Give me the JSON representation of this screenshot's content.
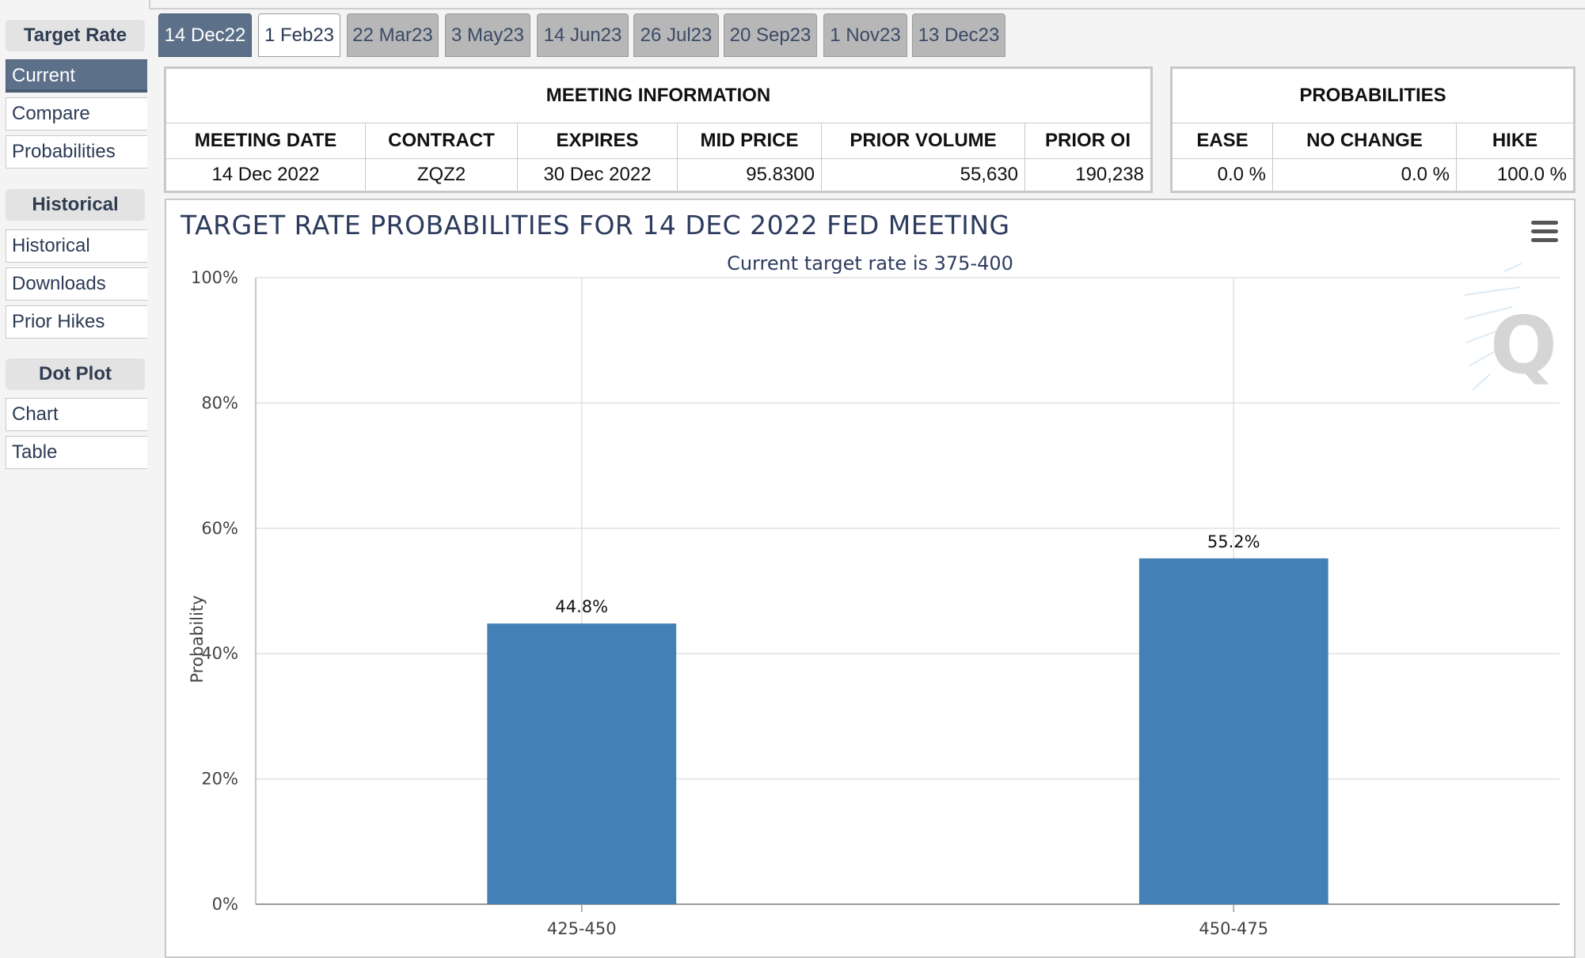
{
  "sidebar": {
    "sections": [
      {
        "title": "Target Rate",
        "items": [
          "Current",
          "Compare",
          "Probabilities"
        ]
      },
      {
        "title": "Historical",
        "items": [
          "Historical",
          "Downloads",
          "Prior Hikes"
        ]
      },
      {
        "title": "Dot Plot",
        "items": [
          "Chart",
          "Table"
        ]
      }
    ],
    "active_item": "Current"
  },
  "tabs": [
    "14 Dec22",
    "1 Feb23",
    "22 Mar23",
    "3 May23",
    "14 Jun23",
    "26 Jul23",
    "20 Sep23",
    "1 Nov23",
    "13 Dec23"
  ],
  "active_tab": "14 Dec22",
  "meeting_info": {
    "caption": "MEETING INFORMATION",
    "headers": [
      "MEETING DATE",
      "CONTRACT",
      "EXPIRES",
      "MID PRICE",
      "PRIOR VOLUME",
      "PRIOR OI"
    ],
    "row": [
      "14 Dec 2022",
      "ZQZ2",
      "30 Dec 2022",
      "95.8300",
      "55,630",
      "190,238"
    ]
  },
  "probabilities": {
    "caption": "PROBABILITIES",
    "headers": [
      "EASE",
      "NO CHANGE",
      "HIKE"
    ],
    "row": [
      "0.0 %",
      "0.0 %",
      "100.0 %"
    ]
  },
  "chart_data": {
    "type": "bar",
    "title": "TARGET RATE PROBABILITIES FOR 14 DEC 2022 FED MEETING",
    "subtitle": "Current target rate is 375-400",
    "ylabel": "Probability",
    "xlabel": "",
    "categories": [
      "425-450",
      "450-475"
    ],
    "values": [
      44.8,
      55.2
    ],
    "data_labels": [
      "44.8%",
      "55.2%"
    ],
    "ylim": [
      0,
      100
    ],
    "yticks": [
      "0%",
      "20%",
      "40%",
      "60%",
      "80%",
      "100%"
    ],
    "bar_color": "#4380b5",
    "grid": true,
    "legend": false
  }
}
